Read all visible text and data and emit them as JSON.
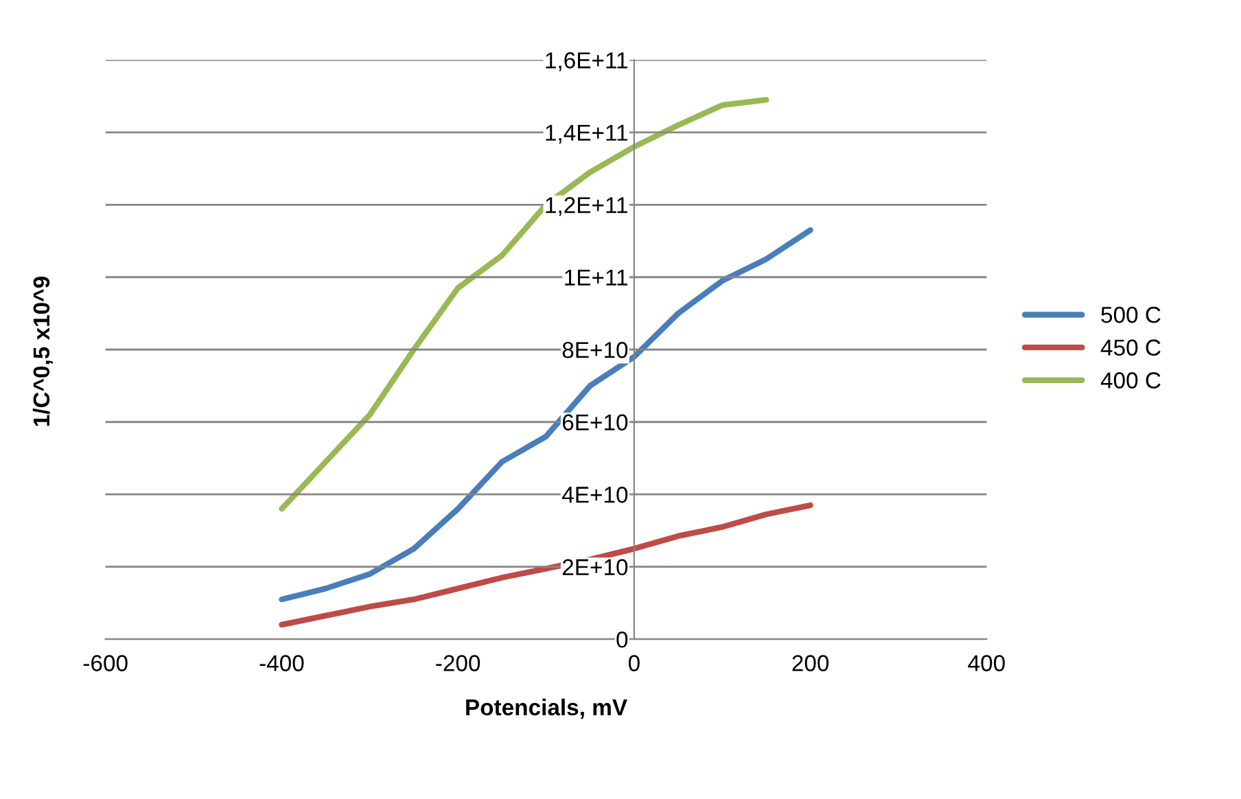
{
  "chart_data": {
    "type": "line",
    "xlabel": "Potencials, mV",
    "ylabel": "1/C^0,5 x10^9",
    "x": [
      -400,
      -350,
      -300,
      -250,
      -200,
      -150,
      -100,
      -50,
      0,
      50,
      100,
      150,
      200
    ],
    "series": [
      {
        "name": "500 C",
        "color": "#4a7ebb",
        "values": [
          11000000000.0,
          14000000000.0,
          18000000000.0,
          25000000000.0,
          36000000000.0,
          49000000000.0,
          56000000000.0,
          70000000000.0,
          78000000000.0,
          90000000000.0,
          99000000000.0,
          105000000000.0,
          113000000000.0
        ]
      },
      {
        "name": "450 C",
        "color": "#be4b48",
        "values": [
          4000000000.0,
          6500000000.0,
          9000000000.0,
          11000000000.0,
          14000000000.0,
          17000000000.0,
          19500000000.0,
          22000000000.0,
          25000000000.0,
          28500000000.0,
          31000000000.0,
          34500000000.0,
          37000000000.0
        ]
      },
      {
        "name": "400 C",
        "color": "#98b954",
        "values": [
          36000000000.0,
          49000000000.0,
          62000000000.0,
          80000000000.0,
          97000000000.0,
          106000000000.0,
          120000000000.0,
          129000000000.0,
          136000000000.0,
          142000000000.0,
          147500000000.0,
          149000000000.0,
          null
        ]
      }
    ],
    "xlim": [
      -600,
      400
    ],
    "xticks": [
      -600,
      -400,
      -200,
      0,
      200,
      400
    ],
    "ylim": [
      0,
      160000000000.0
    ],
    "yticks": [
      0,
      {
        "value": 20000000000.0,
        "label": "2E+10"
      },
      {
        "value": 40000000000.0,
        "label": "4E+10"
      },
      {
        "value": 60000000000.0,
        "label": "6E+10"
      },
      {
        "value": 80000000000.0,
        "label": "8E+10"
      },
      {
        "value": 100000000000.0,
        "label": "1E+11"
      },
      {
        "value": 120000000000.0,
        "label": "1,2E+11"
      },
      {
        "value": 140000000000.0,
        "label": "1,4E+11"
      },
      {
        "value": 160000000000.0,
        "label": "1,6E+11"
      }
    ],
    "grid": "y",
    "legend": "right",
    "marker": "none",
    "line_style": "solid"
  }
}
